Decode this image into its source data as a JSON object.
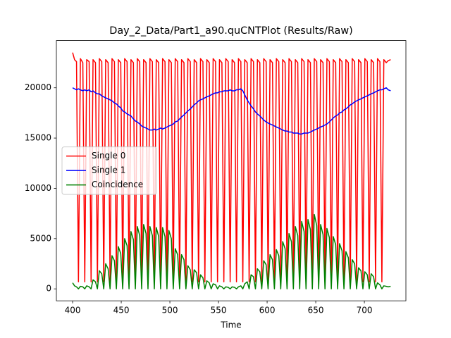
{
  "chart_data": {
    "type": "line",
    "title": "Day_2_Data/Part1_a90.quCNTPlot (Results/Raw)",
    "x_label": "Time",
    "x": [
      400,
      402,
      404,
      406,
      408,
      410.5,
      412.5,
      414.5,
      417,
      419,
      421,
      423.5,
      425.5,
      427.5,
      430,
      432,
      434,
      436.5,
      438.5,
      440.5,
      443,
      445,
      447,
      449.5,
      451.5,
      453.5,
      456,
      458,
      460,
      462.5,
      464.5,
      466.5,
      469,
      471,
      473,
      475.5,
      477.5,
      479.5,
      482,
      484,
      486,
      488.5,
      490.5,
      492.5,
      495,
      497,
      499,
      501.5,
      503.5,
      505.5,
      508,
      510,
      512,
      514.5,
      516.5,
      518.5,
      521,
      523,
      525,
      527.5,
      529.5,
      531.5,
      534,
      536,
      538,
      540.5,
      542.5,
      544.5,
      547,
      549,
      551,
      553.5,
      555.5,
      557.5,
      560,
      562,
      564,
      566.5,
      568.5,
      570.5,
      573,
      575,
      577,
      579.5,
      581.5,
      583.5,
      586,
      588,
      590,
      592.5,
      594.5,
      596.5,
      599,
      601,
      603,
      605.5,
      607.5,
      609.5,
      612,
      614,
      616,
      618.5,
      620.5,
      622.5,
      625,
      627,
      629,
      631.5,
      633.5,
      635.5,
      638,
      640,
      642,
      644.5,
      646.5,
      648.5,
      651,
      653,
      655,
      657.5,
      659.5,
      661.5,
      664,
      666,
      668,
      670.5,
      672.5,
      674.5,
      677,
      679,
      681,
      683.5,
      685.5,
      687.5,
      690,
      692,
      694,
      696.5,
      698.5,
      700.5,
      703,
      705,
      707,
      709.5,
      711.5,
      713.5,
      716,
      718,
      720,
      722.5,
      724.5,
      727
    ],
    "series": [
      {
        "name": "Single 0",
        "color": "#ff0000",
        "values": [
          23500,
          22800,
          22600,
          700,
          22900,
          22500,
          700,
          22800,
          22600,
          700,
          22800,
          22500,
          700,
          22900,
          22600,
          700,
          22800,
          22500,
          700,
          22900,
          22600,
          700,
          22800,
          22500,
          700,
          22900,
          22600,
          700,
          22800,
          22500,
          700,
          22900,
          22600,
          700,
          22800,
          22500,
          700,
          22900,
          22600,
          700,
          22800,
          22500,
          700,
          22900,
          22600,
          700,
          22800,
          22500,
          700,
          22900,
          22600,
          700,
          22800,
          22500,
          700,
          22900,
          22600,
          700,
          22800,
          22500,
          700,
          22900,
          22600,
          700,
          22800,
          22500,
          700,
          22900,
          22600,
          700,
          22800,
          22500,
          700,
          22900,
          22600,
          700,
          22800,
          22500,
          700,
          22900,
          22600,
          700,
          22800,
          22500,
          700,
          22900,
          22600,
          700,
          22800,
          22500,
          700,
          22900,
          22600,
          700,
          22800,
          22500,
          700,
          22900,
          22600,
          700,
          22800,
          22500,
          700,
          22900,
          22600,
          700,
          22800,
          22500,
          700,
          22900,
          22600,
          700,
          22800,
          22500,
          700,
          22900,
          22600,
          700,
          22800,
          22500,
          700,
          22900,
          22600,
          700,
          22800,
          22500,
          700,
          22900,
          22600,
          700,
          22800,
          22500,
          700,
          22900,
          22600,
          700,
          22800,
          22500,
          700,
          22900,
          22600,
          700,
          22800,
          22500,
          700,
          22900,
          22600,
          700,
          22800,
          22500,
          22700,
          22800
        ]
      },
      {
        "name": "Single 1",
        "color": "#0000ff",
        "values": [
          20000,
          19900,
          19800,
          19900,
          19800,
          19700,
          19800,
          19700,
          19800,
          19600,
          19700,
          19500,
          19400,
          19400,
          19200,
          19100,
          19000,
          18900,
          18800,
          18700,
          18500,
          18400,
          18200,
          18000,
          17700,
          17600,
          17400,
          17300,
          17200,
          16900,
          16700,
          16600,
          16400,
          16200,
          16100,
          16000,
          15900,
          15800,
          15800,
          15900,
          15800,
          15900,
          16000,
          15900,
          16000,
          16100,
          16200,
          16300,
          16400,
          16600,
          16700,
          16900,
          17100,
          17300,
          17500,
          17700,
          17900,
          18100,
          18300,
          18500,
          18700,
          18800,
          18900,
          19000,
          19100,
          19200,
          19300,
          19400,
          19500,
          19500,
          19600,
          19600,
          19700,
          19700,
          19700,
          19800,
          19700,
          19700,
          19800,
          19800,
          19900,
          19700,
          19300,
          18800,
          18500,
          18200,
          17900,
          17600,
          17400,
          17200,
          17000,
          16800,
          16600,
          16500,
          16400,
          16300,
          16200,
          16100,
          16000,
          15900,
          15800,
          15700,
          15700,
          15600,
          15600,
          15500,
          15500,
          15500,
          15400,
          15400,
          15500,
          15500,
          15500,
          15600,
          15700,
          15800,
          15900,
          16000,
          16100,
          16200,
          16300,
          16400,
          16600,
          16800,
          17000,
          17200,
          17300,
          17500,
          17600,
          17800,
          17900,
          18100,
          18300,
          18400,
          18600,
          18700,
          18800,
          18900,
          19000,
          19100,
          19200,
          19300,
          19400,
          19500,
          19600,
          19700,
          19800,
          19800,
          19900,
          20000,
          19800,
          19700
        ]
      },
      {
        "name": "Coincidence",
        "color": "#008000",
        "values": [
          600,
          300,
          200,
          0,
          250,
          200,
          0,
          300,
          200,
          0,
          900,
          700,
          0,
          1800,
          1500,
          0,
          2500,
          2000,
          0,
          3300,
          2800,
          0,
          4200,
          3500,
          0,
          5000,
          4300,
          0,
          5700,
          4900,
          0,
          6200,
          5300,
          0,
          6400,
          5500,
          0,
          6200,
          5300,
          0,
          6100,
          5200,
          0,
          6100,
          5200,
          0,
          5800,
          5000,
          0,
          4000,
          3400,
          0,
          3400,
          2900,
          0,
          2300,
          1900,
          0,
          1900,
          1600,
          0,
          1400,
          1100,
          0,
          800,
          600,
          0,
          500,
          400,
          0,
          300,
          200,
          0,
          200,
          150,
          0,
          200,
          150,
          0,
          200,
          300,
          0,
          500,
          700,
          0,
          1400,
          1200,
          0,
          2000,
          1700,
          0,
          2800,
          2400,
          0,
          3400,
          2900,
          0,
          3900,
          3300,
          0,
          4700,
          4000,
          0,
          5500,
          4700,
          0,
          6200,
          5300,
          0,
          6700,
          5700,
          0,
          6900,
          5900,
          0,
          7400,
          6300,
          0,
          6400,
          5400,
          0,
          6000,
          5100,
          0,
          5200,
          4400,
          0,
          4500,
          3800,
          0,
          3700,
          3100,
          0,
          2900,
          2500,
          0,
          2100,
          1800,
          0,
          1700,
          1400,
          0,
          1500,
          1200,
          0,
          600,
          400,
          0,
          300,
          250,
          200,
          250
        ]
      }
    ],
    "xlim": [
      383.3,
      742.7
    ],
    "xticks": [
      400,
      450,
      500,
      550,
      600,
      650,
      700
    ],
    "ylim": [
      -1190,
      24700
    ],
    "yticks": [
      0,
      5000,
      10000,
      15000,
      20000
    ],
    "legend": "center left"
  }
}
